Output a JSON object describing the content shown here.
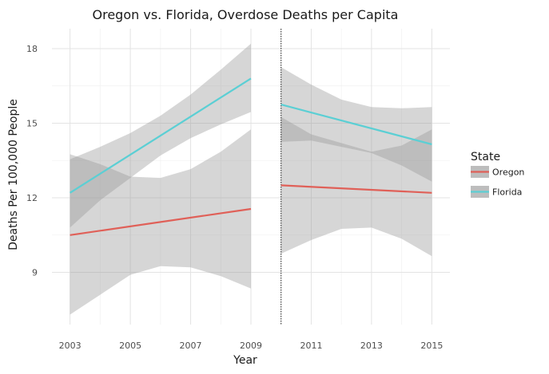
{
  "chart_data": {
    "type": "line",
    "title": "Oregon vs. Florida, Overdose Deaths per Capita",
    "xlabel": "Year",
    "ylabel": "Deaths Per 100,000 People",
    "xlim": [
      2002.4,
      2015.6
    ],
    "ylim": [
      6.9,
      18.8
    ],
    "x_ticks": [
      2003,
      2005,
      2007,
      2009,
      2011,
      2013,
      2015
    ],
    "y_ticks": [
      9,
      12,
      15,
      18
    ],
    "grid": true,
    "cutoff_line": 2010,
    "legend": {
      "title": "State",
      "placement": "right",
      "entries": [
        {
          "name": "Oregon",
          "color": "#e06058"
        },
        {
          "name": "Florida",
          "color": "#5bcfd4"
        }
      ]
    },
    "series": [
      {
        "name": "Oregon",
        "color": "#e06058",
        "segments": [
          {
            "x": [
              2003,
              2009
            ],
            "y": [
              10.5,
              11.55
            ],
            "band_x": [
              2003,
              2004,
              2005,
              2006,
              2007,
              2008,
              2009
            ],
            "band_lower": [
              7.3,
              8.1,
              8.9,
              9.25,
              9.2,
              8.85,
              8.35
            ],
            "band_upper": [
              13.75,
              13.35,
              12.85,
              12.8,
              13.15,
              13.85,
              14.75
            ]
          },
          {
            "x": [
              2010,
              2015
            ],
            "y": [
              12.5,
              12.2
            ],
            "band_x": [
              2010,
              2011,
              2012,
              2013,
              2014,
              2015
            ],
            "band_lower": [
              9.75,
              10.3,
              10.75,
              10.8,
              10.35,
              9.65
            ],
            "band_upper": [
              15.25,
              14.55,
              14.2,
              13.85,
              14.1,
              14.75
            ]
          }
        ]
      },
      {
        "name": "Florida",
        "color": "#5bcfd4",
        "segments": [
          {
            "x": [
              2003,
              2009
            ],
            "y": [
              12.2,
              16.8
            ],
            "band_x": [
              2003,
              2004,
              2005,
              2006,
              2007,
              2008,
              2009
            ],
            "band_lower": [
              10.8,
              11.9,
              12.8,
              13.7,
              14.4,
              14.95,
              15.45
            ],
            "band_upper": [
              13.55,
              14.05,
              14.6,
              15.3,
              16.15,
              17.15,
              18.2
            ]
          },
          {
            "x": [
              2010,
              2015
            ],
            "y": [
              15.75,
              14.15
            ],
            "band_x": [
              2010,
              2011,
              2012,
              2013,
              2014,
              2015
            ],
            "band_lower": [
              14.25,
              14.3,
              14.05,
              13.8,
              13.3,
              12.65
            ],
            "band_upper": [
              17.25,
              16.55,
              15.95,
              15.65,
              15.6,
              15.65
            ]
          }
        ]
      }
    ]
  }
}
